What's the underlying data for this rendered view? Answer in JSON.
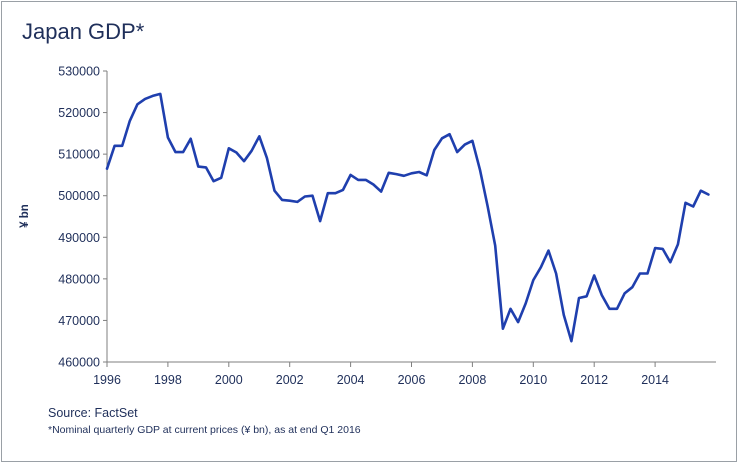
{
  "title": "Japan GDP*",
  "source": "Source: FactSet",
  "footnote": "*Nominal quarterly GDP at current prices (¥ bn), as at end Q1 2016",
  "colors": {
    "line": "#1f3fae",
    "axis": "#7f7f7f",
    "text": "#1f2f5a",
    "border": "#9aa0a6"
  },
  "chart_data": {
    "type": "line",
    "title": "Japan GDP*",
    "xlabel": "",
    "ylabel": "¥ bn",
    "xlim": [
      1996,
      2016
    ],
    "ylim": [
      460000,
      530000
    ],
    "grid": false,
    "x_ticks": [
      1996,
      1998,
      2000,
      2002,
      2004,
      2006,
      2008,
      2010,
      2012,
      2014
    ],
    "x_tick_labels": [
      "1996",
      "1998",
      "2000",
      "2002",
      "2004",
      "2006",
      "2008",
      "2010",
      "2012",
      "2014"
    ],
    "y_ticks": [
      460000,
      470000,
      480000,
      490000,
      500000,
      510000,
      520000,
      530000
    ],
    "y_tick_labels": [
      "460000",
      "470000",
      "480000",
      "490000",
      "500000",
      "510000",
      "520000",
      "530000"
    ],
    "series": [
      {
        "x": [
          1996.0,
          1996.25,
          1996.5,
          1996.75,
          1997.0,
          1997.25,
          1997.5,
          1997.75,
          1998.0,
          1998.25,
          1998.5,
          1998.75,
          1999.0,
          1999.25,
          1999.5,
          1999.75,
          2000.0,
          2000.25,
          2000.5,
          2000.75,
          2001.0,
          2001.25,
          2001.5,
          2001.75,
          2002.0,
          2002.25,
          2002.5,
          2002.75,
          2003.0,
          2003.25,
          2003.5,
          2003.75,
          2004.0,
          2004.25,
          2004.5,
          2004.75,
          2005.0,
          2005.25,
          2005.5,
          2005.75,
          2006.0,
          2006.25,
          2006.5,
          2006.75,
          2007.0,
          2007.25,
          2007.5,
          2007.75,
          2008.0,
          2008.25,
          2008.5,
          2008.75,
          2009.0,
          2009.25,
          2009.5,
          2009.75,
          2010.0,
          2010.25,
          2010.5,
          2010.75,
          2011.0,
          2011.25,
          2011.5,
          2011.75,
          2012.0,
          2012.25,
          2012.5,
          2012.75,
          2013.0,
          2013.25,
          2013.5,
          2013.75,
          2014.0,
          2014.25,
          2014.5,
          2014.75,
          2015.0,
          2015.25,
          2015.5,
          2015.75
        ],
        "values": [
          506500,
          512000,
          512000,
          518000,
          522000,
          523300,
          524000,
          524500,
          514000,
          510500,
          510500,
          513700,
          507000,
          506800,
          503500,
          504300,
          511400,
          510400,
          508300,
          510800,
          514300,
          509100,
          501200,
          499000,
          498800,
          498500,
          499800,
          500000,
          493900,
          500600,
          500600,
          501400,
          505000,
          503800,
          503800,
          502700,
          501000,
          505500,
          505200,
          504800,
          505400,
          505700,
          504900,
          511000,
          513800,
          514800,
          510500,
          512300,
          513200,
          506200,
          497500,
          488000,
          468000,
          472800,
          469600,
          474100,
          479700,
          482800,
          486800,
          481300,
          471300,
          465000,
          475400,
          475800,
          480800,
          476100,
          472800,
          472800,
          476500,
          478000,
          481300,
          481300,
          487400,
          487200,
          484000,
          488300,
          498300,
          497400,
          501200,
          500300
        ]
      }
    ]
  }
}
